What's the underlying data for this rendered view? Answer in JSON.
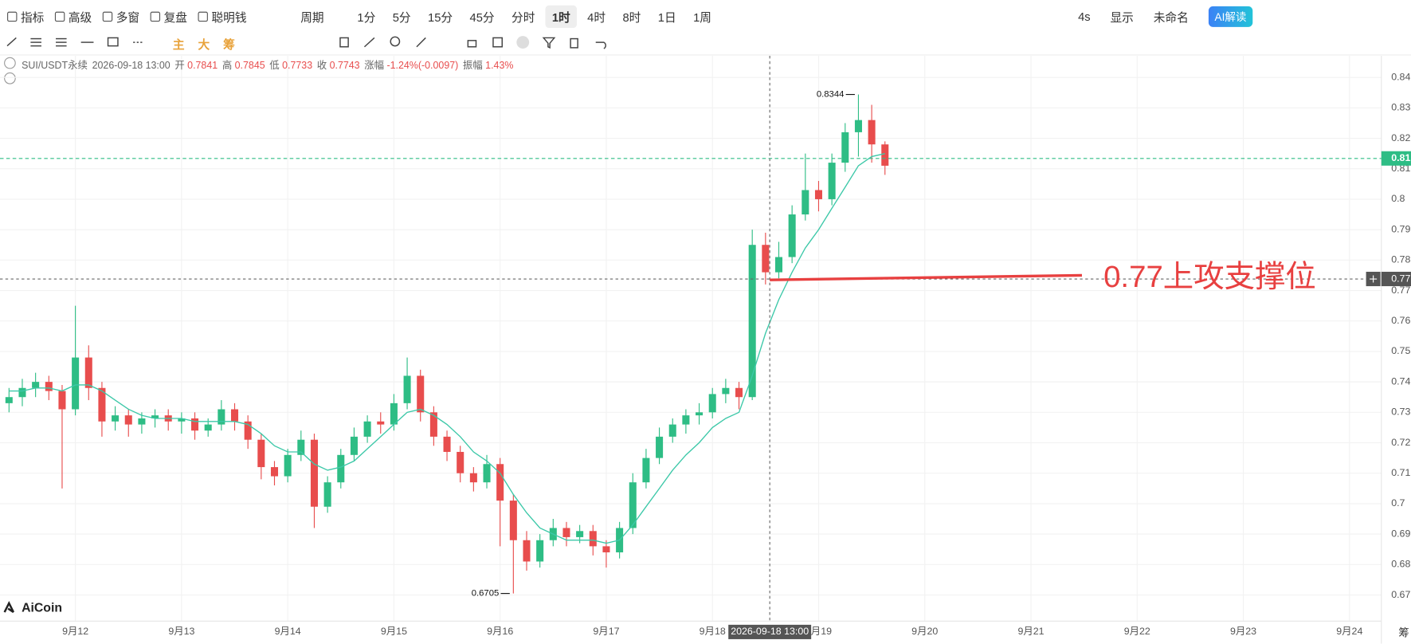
{
  "toolbar": {
    "menu": [
      "指标",
      "高级",
      "多窗",
      "复盘",
      "聪明钱"
    ],
    "period_label": "周期",
    "periods": [
      "1分",
      "5分",
      "15分",
      "45分",
      "分时",
      "1时",
      "4时",
      "8时",
      "1日",
      "1周"
    ],
    "right": [
      "4s",
      "显示",
      "未命名",
      "AI解读"
    ],
    "drawing": [
      "主",
      "大",
      "筹"
    ]
  },
  "info": {
    "symbol": "SUI/USDT永续",
    "datetime": "2026-09-18 13:00",
    "fields": [
      {
        "label": "开",
        "value": 0.7841
      },
      {
        "label": "高",
        "value": 0.7845
      },
      {
        "label": "低",
        "value": 0.7733
      },
      {
        "label": "收",
        "value": 0.7743
      },
      {
        "label": "涨幅",
        "value": "-1.24%(-0.0097)"
      },
      {
        "label": "振幅",
        "value": "1.43%"
      }
    ]
  },
  "logo": "AiCoin",
  "edge_text": "筹",
  "chart_data": {
    "type": "candlestick",
    "up_color": "#2ebd85",
    "down_color": "#e84d4d",
    "ma_color": "#3cc8a8",
    "grid": true,
    "x": [
      11.375,
      11.5,
      11.625,
      11.75,
      11.875,
      12,
      12.125,
      12.25,
      12.375,
      12.5,
      12.625,
      12.75,
      12.875,
      13,
      13.125,
      13.25,
      13.375,
      13.5,
      13.625,
      13.75,
      13.875,
      14,
      14.125,
      14.25,
      14.375,
      14.5,
      14.625,
      14.75,
      14.875,
      15,
      15.125,
      15.25,
      15.375,
      15.5,
      15.625,
      15.75,
      15.875,
      16,
      16.125,
      16.25,
      16.375,
      16.5,
      16.625,
      16.75,
      16.875,
      17,
      17.125,
      17.25,
      17.375,
      17.5,
      17.625,
      17.75,
      17.875,
      18,
      18.125,
      18.25,
      18.375,
      18.5,
      18.625,
      18.75,
      18.875,
      19,
      19.125,
      19.25,
      19.375,
      19.5,
      19.625
    ],
    "open": [
      0.733,
      0.735,
      0.738,
      0.74,
      0.737,
      0.731,
      0.748,
      0.738,
      0.727,
      0.729,
      0.726,
      0.728,
      0.729,
      0.727,
      0.728,
      0.724,
      0.726,
      0.731,
      0.727,
      0.721,
      0.712,
      0.709,
      0.716,
      0.721,
      0.699,
      0.707,
      0.716,
      0.722,
      0.727,
      0.726,
      0.733,
      0.742,
      0.73,
      0.722,
      0.717,
      0.71,
      0.707,
      0.713,
      0.701,
      0.688,
      0.681,
      0.688,
      0.692,
      0.689,
      0.691,
      0.686,
      0.684,
      0.692,
      0.707,
      0.715,
      0.722,
      0.726,
      0.729,
      0.73,
      0.736,
      0.738,
      0.735,
      0.785,
      0.776,
      0.781,
      0.795,
      0.803,
      0.8,
      0.812,
      0.822,
      0.826,
      0.818
    ],
    "high": [
      0.738,
      0.741,
      0.743,
      0.742,
      0.739,
      0.765,
      0.752,
      0.74,
      0.732,
      0.731,
      0.73,
      0.731,
      0.731,
      0.73,
      0.73,
      0.728,
      0.734,
      0.733,
      0.729,
      0.723,
      0.714,
      0.718,
      0.724,
      0.723,
      0.709,
      0.718,
      0.725,
      0.729,
      0.73,
      0.736,
      0.748,
      0.744,
      0.732,
      0.724,
      0.719,
      0.712,
      0.716,
      0.715,
      0.703,
      0.691,
      0.69,
      0.695,
      0.694,
      0.693,
      0.693,
      0.688,
      0.694,
      0.71,
      0.718,
      0.725,
      0.728,
      0.731,
      0.733,
      0.738,
      0.741,
      0.74,
      0.79,
      0.789,
      0.786,
      0.798,
      0.815,
      0.806,
      0.815,
      0.825,
      0.8344,
      0.831,
      0.819
    ],
    "low": [
      0.73,
      0.732,
      0.735,
      0.734,
      0.705,
      0.729,
      0.734,
      0.722,
      0.724,
      0.722,
      0.723,
      0.725,
      0.724,
      0.723,
      0.721,
      0.722,
      0.724,
      0.724,
      0.718,
      0.708,
      0.706,
      0.707,
      0.714,
      0.692,
      0.697,
      0.705,
      0.714,
      0.72,
      0.723,
      0.724,
      0.731,
      0.727,
      0.719,
      0.714,
      0.707,
      0.704,
      0.705,
      0.686,
      0.6705,
      0.678,
      0.679,
      0.686,
      0.686,
      0.687,
      0.683,
      0.679,
      0.682,
      0.69,
      0.705,
      0.713,
      0.72,
      0.723,
      0.726,
      0.728,
      0.733,
      0.731,
      0.734,
      0.772,
      0.774,
      0.779,
      0.793,
      0.796,
      0.798,
      0.809,
      0.814,
      0.812,
      0.808
    ],
    "close": [
      0.735,
      0.738,
      0.74,
      0.737,
      0.731,
      0.748,
      0.738,
      0.727,
      0.729,
      0.726,
      0.728,
      0.729,
      0.727,
      0.728,
      0.724,
      0.726,
      0.731,
      0.727,
      0.721,
      0.712,
      0.709,
      0.716,
      0.721,
      0.699,
      0.707,
      0.716,
      0.722,
      0.727,
      0.726,
      0.733,
      0.742,
      0.73,
      0.722,
      0.717,
      0.71,
      0.707,
      0.713,
      0.701,
      0.688,
      0.681,
      0.688,
      0.692,
      0.689,
      0.691,
      0.686,
      0.684,
      0.692,
      0.707,
      0.715,
      0.722,
      0.726,
      0.729,
      0.73,
      0.736,
      0.738,
      0.735,
      0.785,
      0.776,
      0.781,
      0.795,
      0.803,
      0.8,
      0.812,
      0.822,
      0.826,
      0.818,
      0.811
    ],
    "ma": [
      0.737,
      0.737,
      0.738,
      0.738,
      0.737,
      0.739,
      0.739,
      0.737,
      0.734,
      0.731,
      0.729,
      0.728,
      0.728,
      0.728,
      0.727,
      0.727,
      0.727,
      0.727,
      0.726,
      0.723,
      0.719,
      0.717,
      0.717,
      0.713,
      0.711,
      0.712,
      0.714,
      0.718,
      0.722,
      0.726,
      0.73,
      0.731,
      0.729,
      0.726,
      0.722,
      0.717,
      0.714,
      0.71,
      0.703,
      0.697,
      0.692,
      0.69,
      0.688,
      0.688,
      0.688,
      0.687,
      0.688,
      0.693,
      0.699,
      0.705,
      0.711,
      0.716,
      0.72,
      0.725,
      0.728,
      0.73,
      0.742,
      0.756,
      0.767,
      0.776,
      0.784,
      0.79,
      0.797,
      0.804,
      0.811,
      0.814,
      0.815
    ],
    "xlim": [
      11.29,
      24.3
    ],
    "ylim": [
      0.6614,
      0.8471
    ],
    "xticks": [
      {
        "value": 12,
        "label": "9月12"
      },
      {
        "value": 13,
        "label": "9月13"
      },
      {
        "value": 14,
        "label": "9月14"
      },
      {
        "value": 15,
        "label": "9月15"
      },
      {
        "value": 16,
        "label": "9月16"
      },
      {
        "value": 17,
        "label": "9月17"
      },
      {
        "value": 18,
        "label": "9月18"
      },
      {
        "value": 19,
        "label": "9月19"
      },
      {
        "value": 20,
        "label": "9月20"
      },
      {
        "value": 21,
        "label": "9月21"
      },
      {
        "value": 22,
        "label": "9月22"
      },
      {
        "value": 23,
        "label": "9月23"
      },
      {
        "value": 24,
        "label": "9月24"
      }
    ],
    "yticks": [
      0.67,
      0.68,
      0.69,
      0.7,
      0.71,
      0.72,
      0.73,
      0.74,
      0.75,
      0.76,
      0.77,
      0.78,
      0.79,
      0.8,
      0.81,
      0.82,
      0.83,
      0.84
    ],
    "last_price": {
      "value": 0.8134,
      "label": "0.81"
    },
    "crosshair": {
      "x": {
        "value": 18.54,
        "label": "2026-09-18 13:00"
      },
      "y": {
        "value": 0.7738,
        "label": "0.77"
      }
    },
    "support_line": {
      "x": [
        18.54,
        21.48
      ],
      "y": [
        0.7735,
        0.775
      ]
    },
    "support_label": "0.77上攻支撑位"
  }
}
